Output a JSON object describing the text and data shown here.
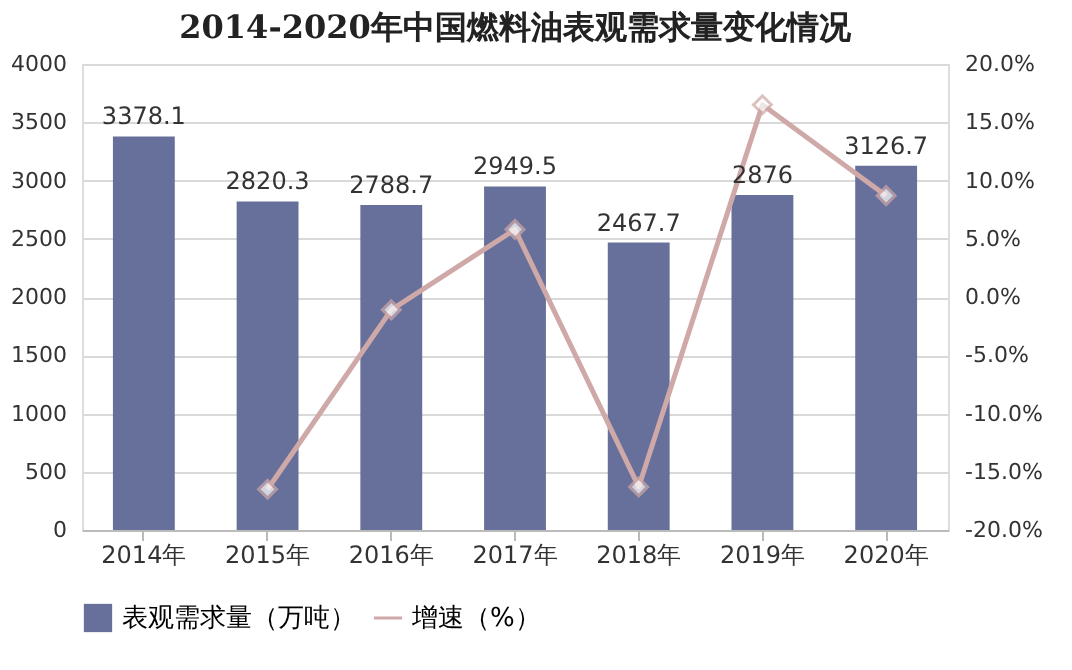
{
  "chart_data": {
    "type": "bar",
    "title": "2014-2020年中国燃料油表观需求量变化情况",
    "categories": [
      "2014年",
      "2015年",
      "2016年",
      "2017年",
      "2018年",
      "2019年",
      "2020年"
    ],
    "series": [
      {
        "name": "表观需求量（万吨）",
        "color": "#67709a",
        "values": [
          3378.1,
          2820.3,
          2788.7,
          2949.5,
          2467.7,
          2876,
          3126.7
        ],
        "value_labels": [
          "3378.1",
          "2820.3",
          "2788.7",
          "2949.5",
          "2467.7",
          "2876",
          "3126.7"
        ]
      },
      {
        "name": "增速（%）",
        "type": "line",
        "axis": "y2",
        "color": "#cfa8a8",
        "marker": "diamond",
        "values": [
          null,
          -16.5,
          -1.1,
          5.8,
          -16.3,
          16.5,
          8.7
        ]
      }
    ],
    "ylim": [
      0,
      4000
    ],
    "yticks": [
      0,
      500,
      1000,
      1500,
      2000,
      2500,
      3000,
      3500,
      4000
    ],
    "y2lim": [
      -20,
      20
    ],
    "y2ticks": [
      {
        "value": -20,
        "label": "-20.0%"
      },
      {
        "value": -15,
        "label": "-15.0%"
      },
      {
        "value": -10,
        "label": "-10.0%"
      },
      {
        "value": -5,
        "label": "-5.0%"
      },
      {
        "value": 0,
        "label": "0.0%"
      },
      {
        "value": 5,
        "label": "5.0%"
      },
      {
        "value": 10,
        "label": "10.0%"
      },
      {
        "value": 15,
        "label": "15.0%"
      },
      {
        "value": 20,
        "label": "20.0%"
      }
    ],
    "grid": "y",
    "legend": "bottom"
  }
}
